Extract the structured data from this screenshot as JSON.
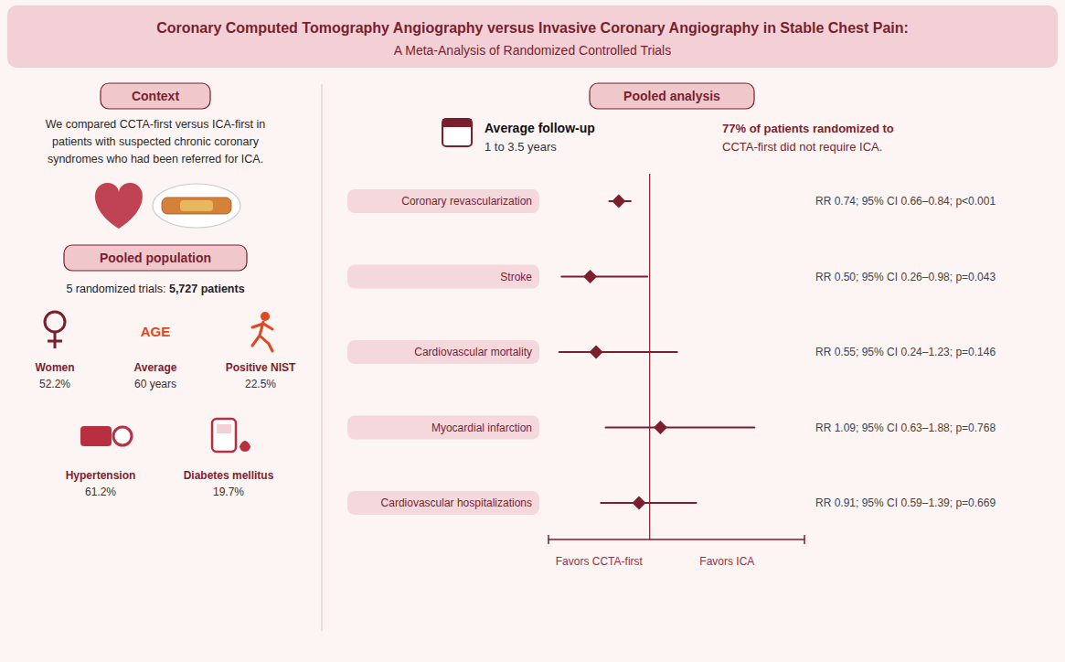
{
  "chart_data": {
    "type": "forest",
    "title": "Coronary Computed Tomography Angiography versus Invasive Coronary Angiography in Stable Chest Pain:",
    "subtitle": "A Meta-Analysis of Randomized Controlled Trials",
    "categories": [
      "Coronary revascularization",
      "Stroke",
      "Cardiovascular mortality",
      "Myocardial infarction",
      "Cardiovascular hospitalizations"
    ],
    "values": [
      0.74,
      0.5,
      0.55,
      1.09,
      0.91
    ],
    "ci_low": [
      0.66,
      0.26,
      0.24,
      0.63,
      0.59
    ],
    "ci_high": [
      0.84,
      0.98,
      1.23,
      1.88,
      1.39
    ],
    "value_labels": [
      "RR 0.74; 95% CI 0.66–0.84; p<0.001",
      "RR 0.50; 95% CI 0.26–0.98; p=0.043",
      "RR 0.55; 95% CI 0.24–1.23; p=0.146",
      "RR 1.09; 95% CI 0.63–1.88; p=0.768",
      "RR 0.91; 95% CI 0.59–1.39; p=0.669"
    ],
    "data_labels": true,
    "xlim": [
      0.15,
      2.3
    ],
    "xticks": [
      1
    ],
    "tick_labels": false,
    "color": "#7B1F2E",
    "annotations": [
      "Context",
      "We compared CCTA-first versus ICA-first in\npatients with suspected chronic coronary\nsyndromes who had been referred for ICA.",
      "Pooled population",
      "5 randomized trials:",
      "5,727 patients",
      "Women",
      "52.2%",
      "AGE",
      "Average",
      "60 years",
      "Positive NIST",
      "22.5%",
      "Hypertension",
      "61.2%",
      "Diabetes mellitus",
      "19.7%",
      "Pooled analysis",
      "Average follow-up",
      "1 to 3.5 years",
      "77% of patients randomized to",
      "CCTA-first did not require ICA.",
      "Favors CCTA-first",
      "Favors ICA"
    ]
  }
}
